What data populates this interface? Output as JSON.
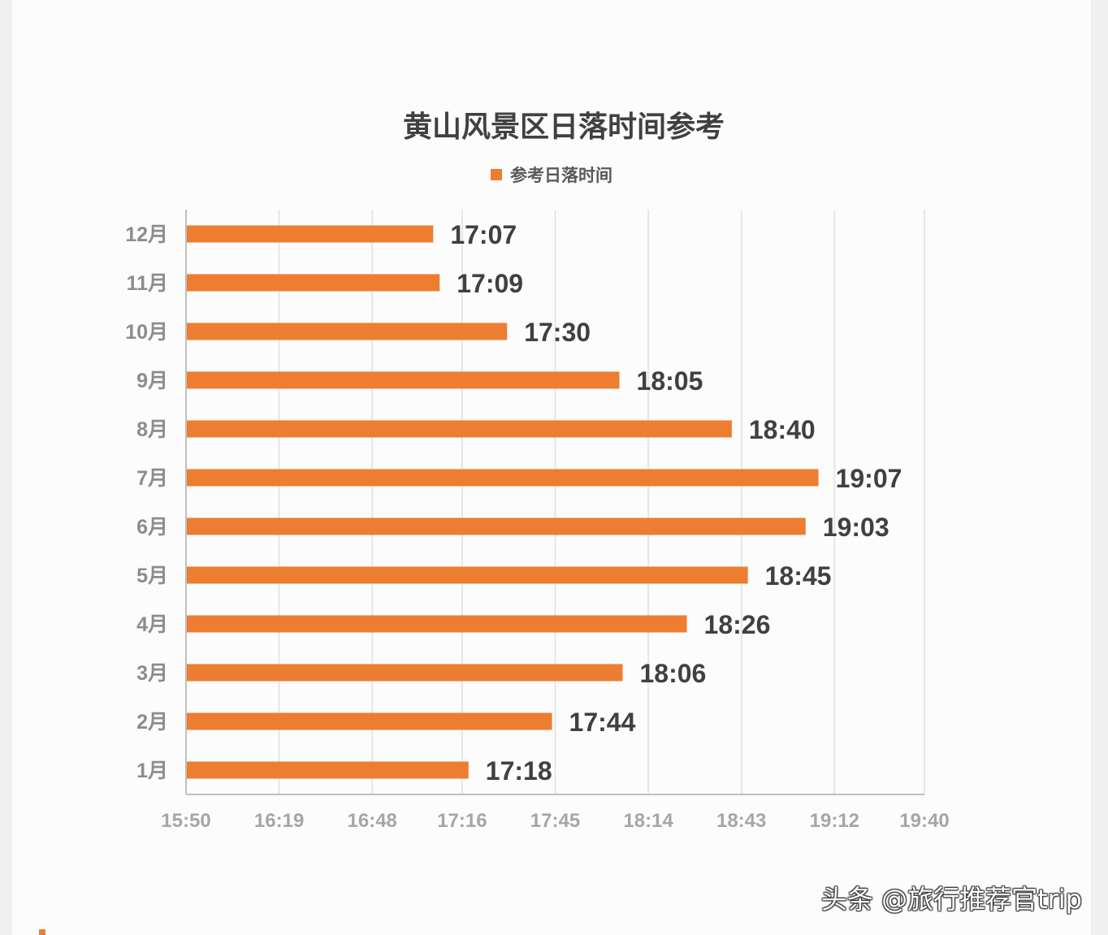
{
  "watermark": "头条 @旅行推荐官trip",
  "chart_data": {
    "type": "bar",
    "orientation": "horizontal",
    "title": "黄山风景区日落时间参考",
    "legend": {
      "position": "top",
      "entries": [
        "参考日落时间"
      ]
    },
    "bar_color": "#ED7D31",
    "categories": [
      "1月",
      "2月",
      "3月",
      "4月",
      "5月",
      "6月",
      "7月",
      "8月",
      "9月",
      "10月",
      "11月",
      "12月"
    ],
    "series": [
      {
        "name": "参考日落时间",
        "values": [
          "17:18",
          "17:44",
          "18:06",
          "18:26",
          "18:45",
          "19:03",
          "19:07",
          "18:40",
          "18:05",
          "17:30",
          "17:09",
          "17:07"
        ]
      }
    ],
    "x_ticks": [
      "15:50",
      "16:19",
      "16:48",
      "17:16",
      "17:45",
      "18:14",
      "18:43",
      "19:12",
      "19:40"
    ],
    "xlim": [
      "15:50",
      "19:40"
    ],
    "grid": "vertical"
  }
}
